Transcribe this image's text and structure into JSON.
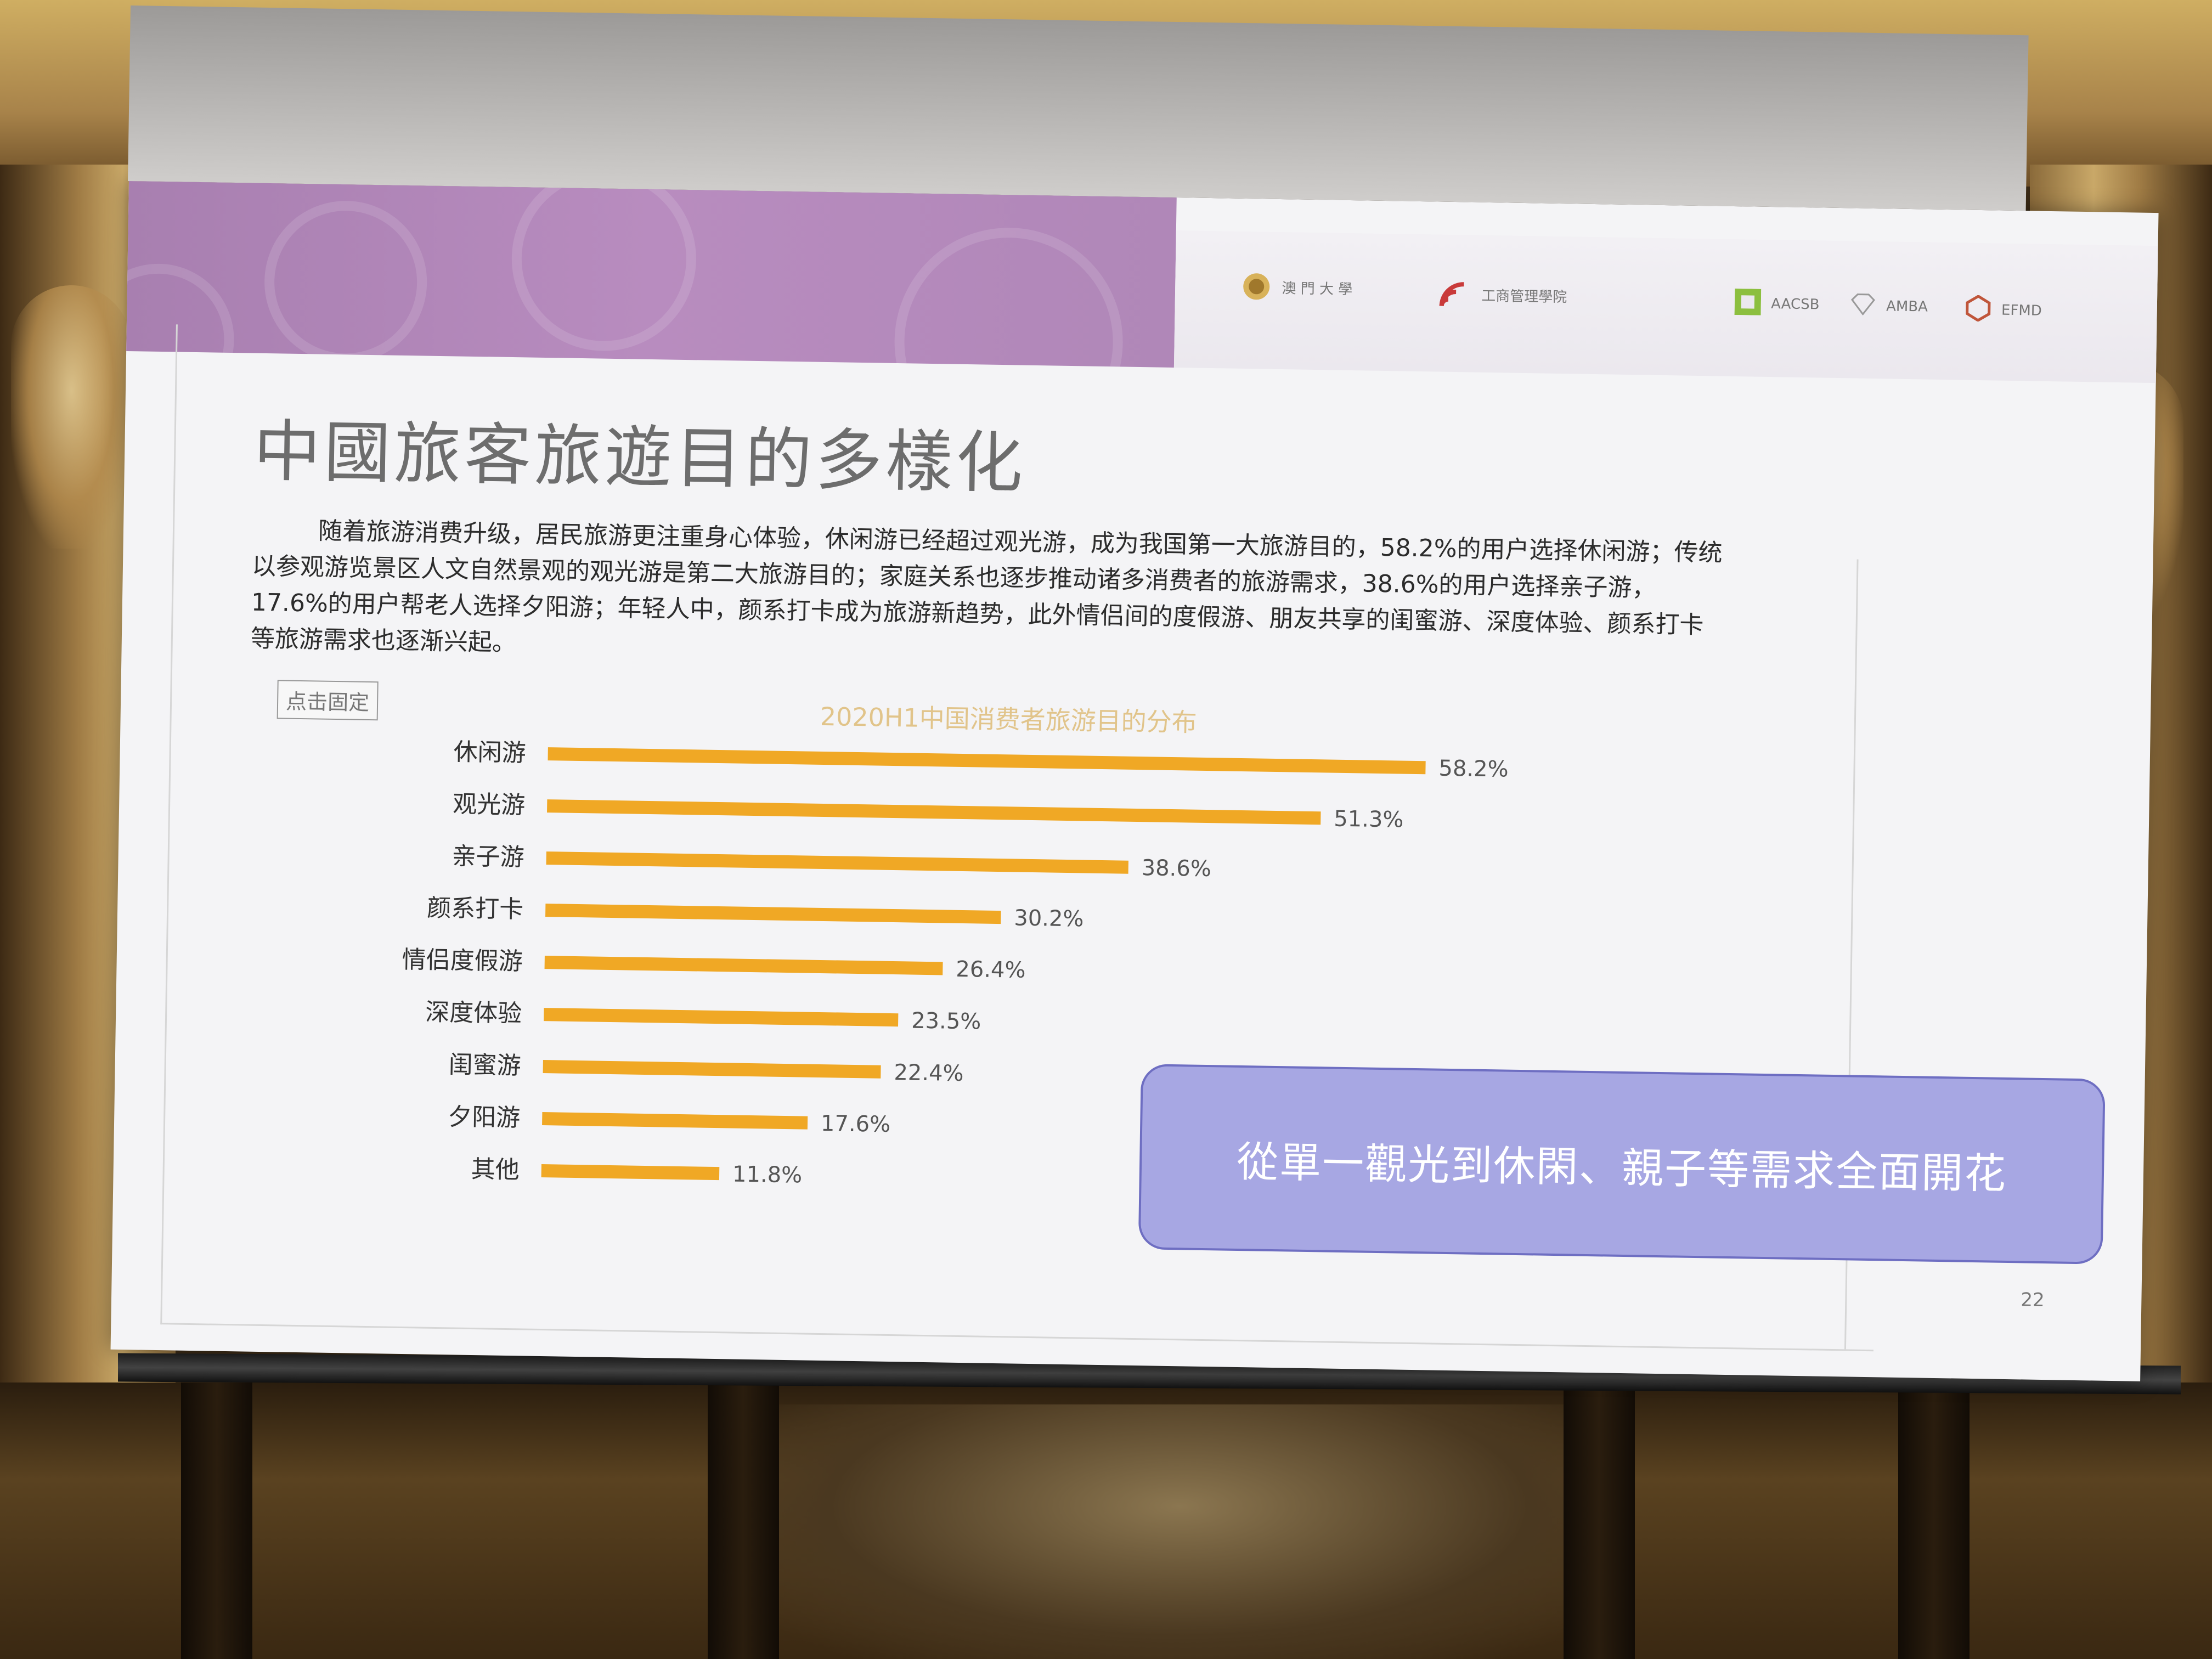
{
  "slide": {
    "title": "中國旅客旅遊目的多樣化",
    "paragraph": "随着旅游消费升级，居民旅游更注重身心体验，休闲游已经超过观光游，成为我国第一大旅游目的，58.2%的用户选择休闲游；传统以参观游览景区人文自然景观的观光游是第二大旅游目的；家庭关系也逐步推动诸多消费者的旅游需求，38.6%的用户选择亲子游，17.6%的用户帮老人选择夕阳游；年轻人中，颜系打卡成为旅游新趋势，此外情侣间的度假游、朋友共享的闺蜜游、深度体验、颜系打卡等旅游需求也逐渐兴起。",
    "pin_button": "点击固定",
    "callout": "從單一觀光到休閑、親子等需求全面開花",
    "page_number": "22",
    "logos": {
      "um": "澳 門 大 學",
      "fba": "工商管理學院",
      "aacsb": "AACSB",
      "amba": "AMBA",
      "efmd": "EFMD"
    }
  },
  "colors": {
    "bar": "#f0a825",
    "header_purple": "#b088b8",
    "callout_fill": "#a7a7e3",
    "callout_border": "#6e6ec2",
    "chart_title": "#e1c48a"
  },
  "chart_data": {
    "type": "bar",
    "orientation": "horizontal",
    "title": "2020H1中国消费者旅游目的分布",
    "categories": [
      "休闲游",
      "观光游",
      "亲子游",
      "颜系打卡",
      "情侣度假游",
      "深度体验",
      "闺蜜游",
      "夕阳游",
      "其他"
    ],
    "values": [
      58.2,
      51.3,
      38.6,
      30.2,
      26.4,
      23.5,
      22.4,
      17.6,
      11.8
    ],
    "value_labels": [
      "58.2%",
      "51.3%",
      "38.6%",
      "30.2%",
      "26.4%",
      "23.5%",
      "22.4%",
      "17.6%",
      "11.8%"
    ],
    "xlim": [
      0,
      60
    ],
    "grid": false,
    "legend": "none"
  }
}
